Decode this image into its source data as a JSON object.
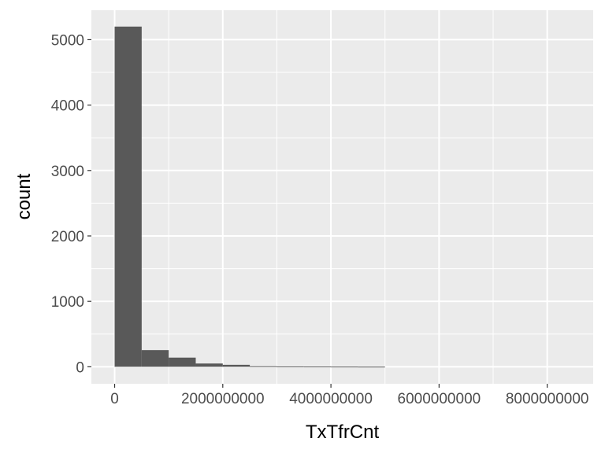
{
  "chart_data": {
    "type": "bar",
    "title": "",
    "xlabel": "TxTfrCnt",
    "ylabel": "count",
    "xlim": [
      -430000000,
      8850000000
    ],
    "ylim": [
      -260,
      5450
    ],
    "bin_width": 500000000,
    "bins": [
      {
        "x0": 0,
        "x1": 500000000,
        "count": 5200
      },
      {
        "x0": 500000000,
        "x1": 1000000000,
        "count": 255
      },
      {
        "x0": 1000000000,
        "x1": 1500000000,
        "count": 140
      },
      {
        "x0": 1500000000,
        "x1": 2000000000,
        "count": 50
      },
      {
        "x0": 2000000000,
        "x1": 2500000000,
        "count": 30
      },
      {
        "x0": 2500000000,
        "x1": 3000000000,
        "count": 8
      },
      {
        "x0": 3000000000,
        "x1": 3500000000,
        "count": 5
      },
      {
        "x0": 3500000000,
        "x1": 4000000000,
        "count": 4
      },
      {
        "x0": 4000000000,
        "x1": 4500000000,
        "count": 3
      },
      {
        "x0": 4500000000,
        "x1": 5000000000,
        "count": 2
      }
    ],
    "x_ticks": [
      0,
      2000000000,
      4000000000,
      6000000000,
      8000000000
    ],
    "x_tick_labels": [
      "0",
      "2000000000",
      "4000000000",
      "6000000000",
      "8000000000"
    ],
    "y_ticks": [
      0,
      1000,
      2000,
      3000,
      4000,
      5000
    ],
    "y_tick_labels": [
      "0",
      "1000",
      "2000",
      "3000",
      "4000",
      "5000"
    ],
    "grid": true,
    "legend": "none",
    "colors": {
      "panel": "#ebebeb",
      "grid_major": "#ffffff",
      "bar": "#595959",
      "tick": "#333333"
    }
  }
}
